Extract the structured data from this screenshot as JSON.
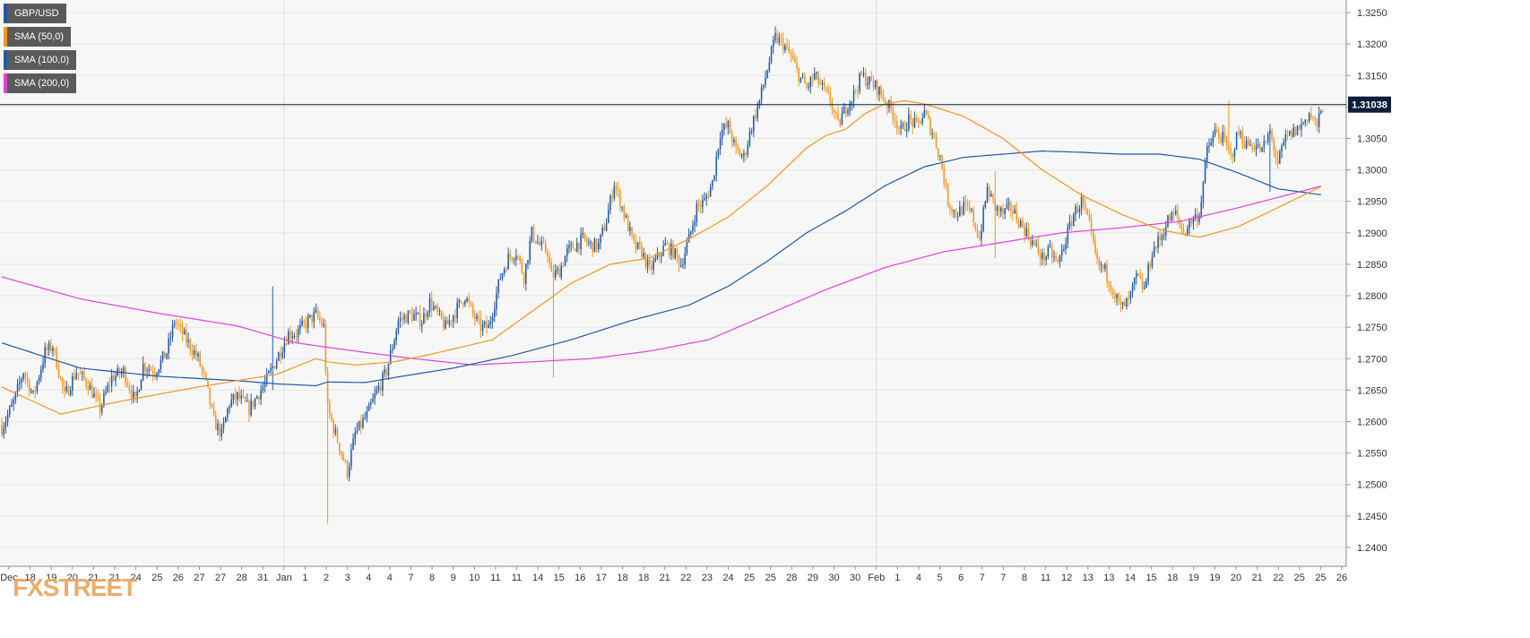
{
  "brand": {
    "logo_text": "FXSTREET"
  },
  "legend": [
    {
      "label": "GBP/USD",
      "color": "#1f5aa6"
    },
    {
      "label": "SMA (50,0)",
      "color": "#f5961e"
    },
    {
      "label": "SMA (100,0)",
      "color": "#1f5aa6"
    },
    {
      "label": "SMA (200,0)",
      "color": "#e040e0"
    }
  ],
  "price_tag": {
    "label": "1.31038",
    "value": 1.31038
  },
  "colors": {
    "up": "#1f5aa6",
    "down": "#f5961e",
    "sma50": "#f5961e",
    "sma100": "#1f5aa6",
    "sma200": "#e040e0",
    "grid": "#e6e6e6",
    "tag_bg": "#0b1f3a"
  },
  "chart_data": {
    "type": "candlestick",
    "ylim": [
      1.237,
      1.327
    ],
    "yticks": [
      1.24,
      1.245,
      1.25,
      1.255,
      1.26,
      1.265,
      1.27,
      1.275,
      1.28,
      1.285,
      1.29,
      1.295,
      1.3,
      1.305,
      1.31,
      1.315,
      1.32,
      1.325
    ],
    "ytick_labels": [
      "1.2400",
      "1.2450",
      "1.2500",
      "1.2550",
      "1.2600",
      "1.2650",
      "1.2700",
      "1.2750",
      "1.2800",
      "1.2850",
      "1.2900",
      "1.2950",
      "1.3000",
      "1.3050",
      "1.3100",
      "1.3150",
      "1.3200",
      "1.3250"
    ],
    "xtick_labels": [
      "Dec",
      "18",
      "19",
      "20",
      "21",
      "21",
      "24",
      "25",
      "26",
      "27",
      "27",
      "28",
      "31",
      "Jan",
      "1",
      "2",
      "3",
      "4",
      "4",
      "7",
      "8",
      "9",
      "10",
      "11",
      "11",
      "14",
      "15",
      "16",
      "17",
      "18",
      "18",
      "21",
      "22",
      "23",
      "24",
      "25",
      "25",
      "28",
      "29",
      "30",
      "30",
      "Feb",
      "1",
      "4",
      "5",
      "6",
      "7",
      "7",
      "8",
      "11",
      "12",
      "13",
      "13",
      "14",
      "15",
      "18",
      "19",
      "19",
      "20",
      "21",
      "22",
      "25",
      "25",
      "26"
    ],
    "series": [
      {
        "name": "GBP/USD",
        "kind": "ohlc"
      },
      {
        "name": "SMA (50,0)",
        "kind": "line"
      },
      {
        "name": "SMA (100,0)",
        "kind": "line"
      },
      {
        "name": "SMA (200,0)",
        "kind": "line"
      }
    ],
    "anchors": {
      "close": [
        [
          0,
          1.259
        ],
        [
          6,
          1.263
        ],
        [
          11,
          1.268
        ],
        [
          16,
          1.264
        ],
        [
          22,
          1.271
        ],
        [
          26,
          1.272
        ],
        [
          32,
          1.264
        ],
        [
          38,
          1.268
        ],
        [
          44,
          1.266
        ],
        [
          50,
          1.262
        ],
        [
          56,
          1.267
        ],
        [
          62,
          1.268
        ],
        [
          68,
          1.263
        ],
        [
          72,
          1.269
        ],
        [
          78,
          1.268
        ],
        [
          84,
          1.271
        ],
        [
          88,
          1.276
        ],
        [
          92,
          1.274
        ],
        [
          96,
          1.272
        ],
        [
          100,
          1.27
        ],
        [
          104,
          1.266
        ],
        [
          108,
          1.26
        ],
        [
          112,
          1.258
        ],
        [
          116,
          1.263
        ],
        [
          120,
          1.264
        ],
        [
          126,
          1.262
        ],
        [
          134,
          1.266
        ],
        [
          140,
          1.27
        ],
        [
          146,
          1.274
        ],
        [
          150,
          1.274
        ],
        [
          156,
          1.276
        ],
        [
          160,
          1.277
        ],
        [
          164,
          1.275
        ],
        [
          166,
          1.262
        ],
        [
          170,
          1.258
        ],
        [
          176,
          1.252
        ],
        [
          180,
          1.258
        ],
        [
          186,
          1.261
        ],
        [
          190,
          1.264
        ],
        [
          196,
          1.268
        ],
        [
          202,
          1.276
        ],
        [
          208,
          1.277
        ],
        [
          214,
          1.276
        ],
        [
          218,
          1.279
        ],
        [
          222,
          1.277
        ],
        [
          226,
          1.275
        ],
        [
          230,
          1.277
        ],
        [
          236,
          1.28
        ],
        [
          240,
          1.277
        ],
        [
          244,
          1.275
        ],
        [
          248,
          1.275
        ],
        [
          254,
          1.283
        ],
        [
          258,
          1.286
        ],
        [
          262,
          1.287
        ],
        [
          266,
          1.283
        ],
        [
          270,
          1.29
        ],
        [
          274,
          1.288
        ],
        [
          278,
          1.287
        ],
        [
          280,
          1.283
        ],
        [
          284,
          1.284
        ],
        [
          288,
          1.287
        ],
        [
          292,
          1.288
        ],
        [
          296,
          1.289
        ],
        [
          300,
          1.288
        ],
        [
          304,
          1.288
        ],
        [
          308,
          1.292
        ],
        [
          312,
          1.298
        ],
        [
          318,
          1.292
        ],
        [
          322,
          1.288
        ],
        [
          326,
          1.287
        ],
        [
          330,
          1.284
        ],
        [
          334,
          1.286
        ],
        [
          338,
          1.288
        ],
        [
          342,
          1.287
        ],
        [
          346,
          1.285
        ],
        [
          350,
          1.289
        ],
        [
          354,
          1.294
        ],
        [
          358,
          1.295
        ],
        [
          362,
          1.298
        ],
        [
          366,
          1.306
        ],
        [
          370,
          1.307
        ],
        [
          374,
          1.303
        ],
        [
          378,
          1.302
        ],
        [
          382,
          1.307
        ],
        [
          386,
          1.311
        ],
        [
          390,
          1.316
        ],
        [
          394,
          1.321
        ],
        [
          398,
          1.32
        ],
        [
          402,
          1.318
        ],
        [
          406,
          1.315
        ],
        [
          410,
          1.313
        ],
        [
          414,
          1.315
        ],
        [
          418,
          1.313
        ],
        [
          422,
          1.311
        ],
        [
          426,
          1.307
        ],
        [
          430,
          1.31
        ],
        [
          434,
          1.312
        ],
        [
          438,
          1.315
        ],
        [
          442,
          1.314
        ],
        [
          446,
          1.313
        ],
        [
          450,
          1.311
        ],
        [
          454,
          1.309
        ],
        [
          458,
          1.306
        ],
        [
          462,
          1.308
        ],
        [
          466,
          1.307
        ],
        [
          470,
          1.309
        ],
        [
          474,
          1.306
        ],
        [
          478,
          1.302
        ],
        [
          482,
          1.295
        ],
        [
          486,
          1.293
        ],
        [
          490,
          1.294
        ],
        [
          494,
          1.293
        ],
        [
          498,
          1.289
        ],
        [
          502,
          1.297
        ],
        [
          506,
          1.294
        ],
        [
          510,
          1.293
        ],
        [
          514,
          1.294
        ],
        [
          518,
          1.292
        ],
        [
          522,
          1.29
        ],
        [
          526,
          1.288
        ],
        [
          530,
          1.286
        ],
        [
          534,
          1.287
        ],
        [
          538,
          1.285
        ],
        [
          542,
          1.289
        ],
        [
          546,
          1.293
        ],
        [
          550,
          1.295
        ],
        [
          554,
          1.291
        ],
        [
          558,
          1.285
        ],
        [
          562,
          1.284
        ],
        [
          566,
          1.281
        ],
        [
          570,
          1.278
        ],
        [
          574,
          1.279
        ],
        [
          578,
          1.283
        ],
        [
          582,
          1.281
        ],
        [
          586,
          1.287
        ],
        [
          590,
          1.289
        ],
        [
          594,
          1.292
        ],
        [
          598,
          1.293
        ],
        [
          602,
          1.29
        ],
        [
          606,
          1.292
        ],
        [
          610,
          1.293
        ],
        [
          614,
          1.303
        ],
        [
          618,
          1.306
        ],
        [
          622,
          1.305
        ],
        [
          626,
          1.302
        ],
        [
          630,
          1.306
        ],
        [
          634,
          1.304
        ],
        [
          638,
          1.304
        ],
        [
          642,
          1.303
        ],
        [
          646,
          1.306
        ],
        [
          650,
          1.301
        ],
        [
          654,
          1.305
        ],
        [
          658,
          1.306
        ],
        [
          662,
          1.307
        ],
        [
          666,
          1.309
        ],
        [
          670,
          1.307
        ],
        [
          673,
          1.31
        ]
      ],
      "sma50": [
        [
          0,
          1.2655
        ],
        [
          30,
          1.2612
        ],
        [
          60,
          1.2632
        ],
        [
          100,
          1.2655
        ],
        [
          120,
          1.2665
        ],
        [
          140,
          1.2675
        ],
        [
          160,
          1.27
        ],
        [
          166,
          1.2695
        ],
        [
          180,
          1.269
        ],
        [
          200,
          1.2695
        ],
        [
          220,
          1.2708
        ],
        [
          250,
          1.273
        ],
        [
          270,
          1.2775
        ],
        [
          290,
          1.282
        ],
        [
          310,
          1.285
        ],
        [
          330,
          1.286
        ],
        [
          350,
          1.289
        ],
        [
          370,
          1.2925
        ],
        [
          390,
          1.2975
        ],
        [
          410,
          1.3035
        ],
        [
          420,
          1.3055
        ],
        [
          430,
          1.3065
        ],
        [
          440,
          1.309
        ],
        [
          450,
          1.3105
        ],
        [
          460,
          1.311
        ],
        [
          470,
          1.3105
        ],
        [
          490,
          1.3085
        ],
        [
          510,
          1.305
        ],
        [
          530,
          1.3
        ],
        [
          550,
          1.296
        ],
        [
          570,
          1.293
        ],
        [
          590,
          1.2905
        ],
        [
          610,
          1.2893
        ],
        [
          630,
          1.291
        ],
        [
          650,
          1.294
        ],
        [
          673,
          1.2975
        ]
      ],
      "sma100": [
        [
          0,
          1.2725
        ],
        [
          40,
          1.2685
        ],
        [
          80,
          1.2672
        ],
        [
          120,
          1.2665
        ],
        [
          140,
          1.266
        ],
        [
          160,
          1.2657
        ],
        [
          166,
          1.2663
        ],
        [
          185,
          1.2662
        ],
        [
          200,
          1.267
        ],
        [
          230,
          1.2685
        ],
        [
          260,
          1.2705
        ],
        [
          290,
          1.273
        ],
        [
          320,
          1.276
        ],
        [
          350,
          1.2785
        ],
        [
          370,
          1.2815
        ],
        [
          390,
          1.2855
        ],
        [
          410,
          1.29
        ],
        [
          430,
          1.2935
        ],
        [
          450,
          1.2975
        ],
        [
          470,
          1.3005
        ],
        [
          490,
          1.302
        ],
        [
          510,
          1.3025
        ],
        [
          530,
          1.303
        ],
        [
          550,
          1.3028
        ],
        [
          570,
          1.3025
        ],
        [
          590,
          1.3025
        ],
        [
          610,
          1.3017
        ],
        [
          630,
          1.2995
        ],
        [
          650,
          1.297
        ],
        [
          673,
          1.296
        ]
      ],
      "sma200": [
        [
          0,
          1.283
        ],
        [
          40,
          1.2795
        ],
        [
          80,
          1.2772
        ],
        [
          120,
          1.2752
        ],
        [
          150,
          1.2725
        ],
        [
          180,
          1.2712
        ],
        [
          210,
          1.27
        ],
        [
          240,
          1.269
        ],
        [
          270,
          1.2695
        ],
        [
          300,
          1.27
        ],
        [
          330,
          1.2712
        ],
        [
          360,
          1.273
        ],
        [
          390,
          1.277
        ],
        [
          420,
          1.281
        ],
        [
          450,
          1.2845
        ],
        [
          480,
          1.287
        ],
        [
          510,
          1.2885
        ],
        [
          540,
          1.29
        ],
        [
          570,
          1.2908
        ],
        [
          600,
          1.2918
        ],
        [
          630,
          1.294
        ],
        [
          673,
          1.2975
        ]
      ]
    },
    "spikes": [
      {
        "idx": 166,
        "low": 1.2438,
        "high": 1.2618
      },
      {
        "idx": 281,
        "low": 1.267,
        "high": 1.281
      },
      {
        "idx": 138,
        "low": 1.265,
        "high": 1.2815
      },
      {
        "idx": 506,
        "low": 1.286,
        "high": 1.2998
      },
      {
        "idx": 625,
        "low": 1.3045,
        "high": 1.311
      },
      {
        "idx": 646,
        "low": 1.2965,
        "high": 1.306
      }
    ],
    "current_price": 1.31038,
    "candle_count": 674
  }
}
